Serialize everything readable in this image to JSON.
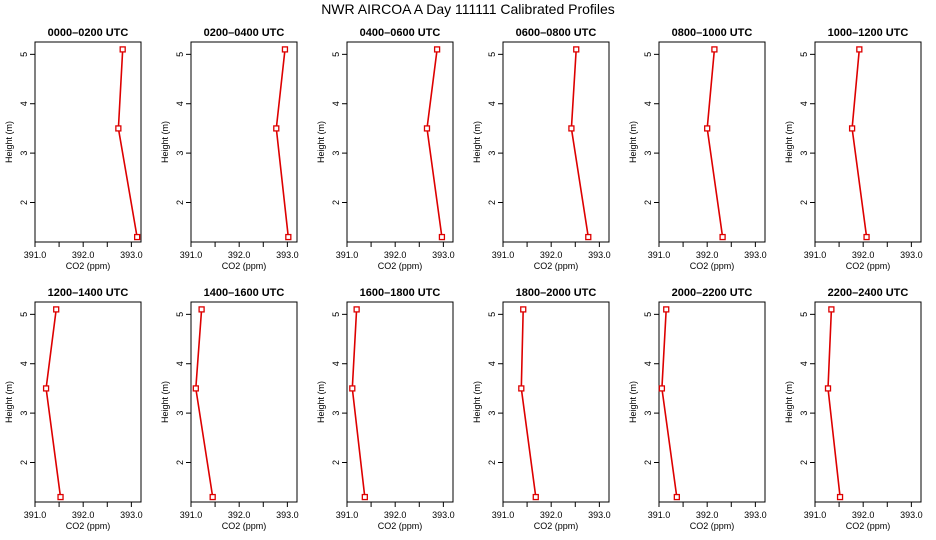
{
  "title": "NWR AIRCOA A   Day 111111   Calibrated Profiles",
  "chart_data": {
    "type": "line",
    "xlabel": "CO2 (ppm)",
    "ylabel": "Height (m)",
    "xlim": [
      391.0,
      393.2
    ],
    "ylim": [
      1.2,
      5.25
    ],
    "x_ticks": [
      "391.0",
      "392.0",
      "393.0"
    ],
    "y_ticks": [
      "2",
      "3",
      "4",
      "5"
    ],
    "series_color": "#dd0000",
    "panels": [
      {
        "title": "0000–0200 UTC",
        "points": [
          {
            "x": 392.82,
            "y": 5.1
          },
          {
            "x": 392.73,
            "y": 3.5
          },
          {
            "x": 393.12,
            "y": 1.3
          }
        ]
      },
      {
        "title": "0200–0400 UTC",
        "points": [
          {
            "x": 392.95,
            "y": 5.1
          },
          {
            "x": 392.77,
            "y": 3.5
          },
          {
            "x": 393.02,
            "y": 1.3
          }
        ]
      },
      {
        "title": "0400–0600 UTC",
        "points": [
          {
            "x": 392.87,
            "y": 5.1
          },
          {
            "x": 392.66,
            "y": 3.5
          },
          {
            "x": 392.97,
            "y": 1.3
          }
        ]
      },
      {
        "title": "0600–0800 UTC",
        "points": [
          {
            "x": 392.52,
            "y": 5.1
          },
          {
            "x": 392.42,
            "y": 3.5
          },
          {
            "x": 392.77,
            "y": 1.3
          }
        ]
      },
      {
        "title": "0800–1000 UTC",
        "points": [
          {
            "x": 392.15,
            "y": 5.1
          },
          {
            "x": 392.0,
            "y": 3.5
          },
          {
            "x": 392.32,
            "y": 1.3
          }
        ]
      },
      {
        "title": "1000–1200 UTC",
        "points": [
          {
            "x": 391.92,
            "y": 5.1
          },
          {
            "x": 391.77,
            "y": 3.5
          },
          {
            "x": 392.07,
            "y": 1.3
          }
        ]
      },
      {
        "title": "1200–1400 UTC",
        "points": [
          {
            "x": 391.44,
            "y": 5.1
          },
          {
            "x": 391.23,
            "y": 3.5
          },
          {
            "x": 391.53,
            "y": 1.3
          }
        ]
      },
      {
        "title": "1400–1600 UTC",
        "points": [
          {
            "x": 391.22,
            "y": 5.1
          },
          {
            "x": 391.1,
            "y": 3.5
          },
          {
            "x": 391.45,
            "y": 1.3
          }
        ]
      },
      {
        "title": "1600–1800 UTC",
        "points": [
          {
            "x": 391.2,
            "y": 5.1
          },
          {
            "x": 391.11,
            "y": 3.5
          },
          {
            "x": 391.37,
            "y": 1.3
          }
        ]
      },
      {
        "title": "1800–2000 UTC",
        "points": [
          {
            "x": 391.42,
            "y": 5.1
          },
          {
            "x": 391.38,
            "y": 3.5
          },
          {
            "x": 391.68,
            "y": 1.3
          }
        ]
      },
      {
        "title": "2000–2200 UTC",
        "points": [
          {
            "x": 391.15,
            "y": 5.1
          },
          {
            "x": 391.06,
            "y": 3.5
          },
          {
            "x": 391.37,
            "y": 1.3
          }
        ]
      },
      {
        "title": "2200–2400 UTC",
        "points": [
          {
            "x": 391.34,
            "y": 5.1
          },
          {
            "x": 391.27,
            "y": 3.5
          },
          {
            "x": 391.52,
            "y": 1.3
          }
        ]
      }
    ]
  }
}
